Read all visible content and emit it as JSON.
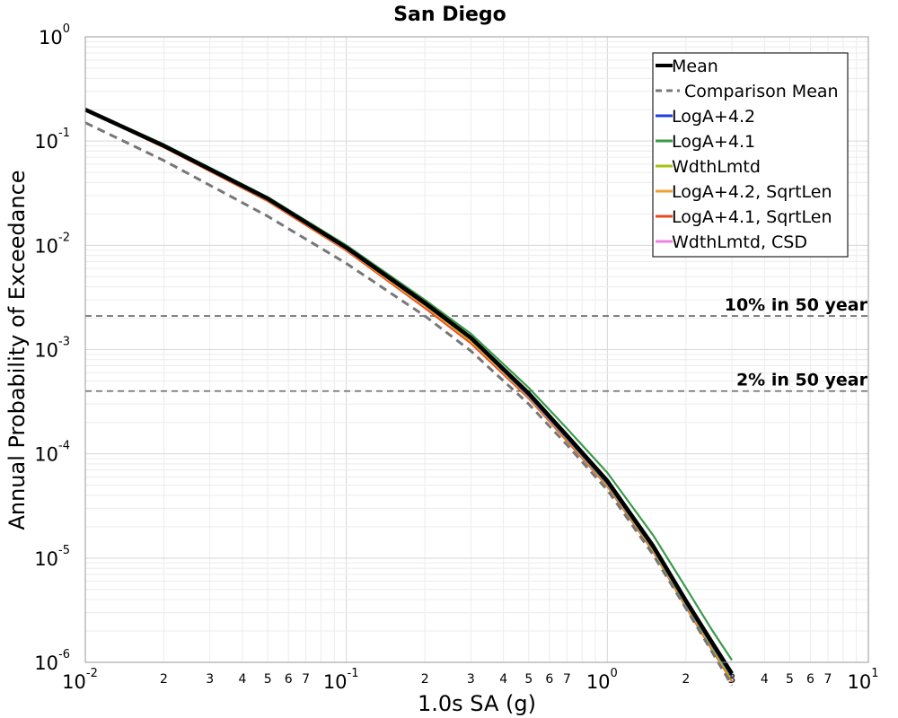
{
  "chart_data": {
    "type": "line",
    "title": "San Diego",
    "xlabel": "1.0s SA (g)",
    "ylabel": "Annual Probability of Exceedance",
    "xscale": "log",
    "yscale": "log",
    "xlim": [
      0.01,
      10
    ],
    "ylim": [
      1e-06,
      1
    ],
    "grid": true,
    "legend_position": "top-right",
    "x_major_ticks": [
      {
        "value": 0.01,
        "base": "10",
        "exp": "-2"
      },
      {
        "value": 0.1,
        "base": "10",
        "exp": "-1"
      },
      {
        "value": 1,
        "base": "10",
        "exp": "0"
      },
      {
        "value": 10,
        "base": "10",
        "exp": "1"
      }
    ],
    "x_minor_ticks": [
      {
        "value": 0.02,
        "label": "2"
      },
      {
        "value": 0.03,
        "label": "3"
      },
      {
        "value": 0.04,
        "label": "4"
      },
      {
        "value": 0.05,
        "label": "5"
      },
      {
        "value": 0.06,
        "label": "6"
      },
      {
        "value": 0.07,
        "label": "7"
      },
      {
        "value": 0.2,
        "label": "2"
      },
      {
        "value": 0.3,
        "label": "3"
      },
      {
        "value": 0.4,
        "label": "4"
      },
      {
        "value": 0.5,
        "label": "5"
      },
      {
        "value": 0.6,
        "label": "6"
      },
      {
        "value": 0.7,
        "label": "7"
      },
      {
        "value": 2,
        "label": "2"
      },
      {
        "value": 3,
        "label": "3"
      },
      {
        "value": 4,
        "label": "4"
      },
      {
        "value": 5,
        "label": "5"
      },
      {
        "value": 6,
        "label": "6"
      },
      {
        "value": 7,
        "label": "7"
      }
    ],
    "y_major_ticks": [
      {
        "value": 1,
        "base": "10",
        "exp": "0"
      },
      {
        "value": 0.1,
        "base": "10",
        "exp": "-1"
      },
      {
        "value": 0.01,
        "base": "10",
        "exp": "-2"
      },
      {
        "value": 0.001,
        "base": "10",
        "exp": "-3"
      },
      {
        "value": 0.0001,
        "base": "10",
        "exp": "-4"
      },
      {
        "value": 1e-05,
        "base": "10",
        "exp": "-5"
      },
      {
        "value": 1e-06,
        "base": "10",
        "exp": "-6"
      }
    ],
    "reference_lines": [
      {
        "label": "10% in 50 year",
        "y": 0.0021
      },
      {
        "label": "2% in 50 year",
        "y": 0.0004
      }
    ],
    "series": [
      {
        "name": "Mean",
        "color": "#000000",
        "style": "solid",
        "width": "thick",
        "x": [
          0.01,
          0.02,
          0.05,
          0.1,
          0.2,
          0.3,
          0.5,
          0.7,
          1.0,
          1.5,
          2.0,
          2.5,
          3.0
        ],
        "y": [
          0.2,
          0.09,
          0.028,
          0.0095,
          0.0028,
          0.0013,
          0.00038,
          0.00015,
          5.5e-05,
          1.3e-05,
          3.9e-06,
          1.6e-06,
          7.8e-07
        ]
      },
      {
        "name": "Comparison Mean",
        "color": "#777777",
        "style": "dashed",
        "width": "medium",
        "x": [
          0.01,
          0.02,
          0.05,
          0.1,
          0.2,
          0.3,
          0.5,
          0.7,
          1.0,
          1.5,
          2.0,
          2.5,
          3.0
        ],
        "y": [
          0.15,
          0.065,
          0.019,
          0.0067,
          0.0021,
          0.00097,
          0.0003,
          0.000122,
          4.5e-05,
          1.07e-05,
          3.3e-06,
          1.3e-06,
          6e-07
        ]
      },
      {
        "name": "LogA+4.2",
        "color": "#1f3fe0",
        "style": "solid",
        "width": "thin",
        "x": [
          0.01,
          0.02,
          0.05,
          0.1,
          0.2,
          0.3,
          0.5,
          0.7,
          1.0,
          1.5,
          2.0,
          2.5,
          3.0
        ],
        "y": [
          0.2,
          0.09,
          0.028,
          0.0094,
          0.0027,
          0.00126,
          0.00036,
          0.000142,
          5.2e-05,
          1.23e-05,
          3.7e-06,
          1.5e-06,
          7.3e-07
        ]
      },
      {
        "name": "LogA+4.1",
        "color": "#3a9a4a",
        "style": "solid",
        "width": "thin",
        "x": [
          0.01,
          0.02,
          0.05,
          0.1,
          0.2,
          0.3,
          0.5,
          0.7,
          1.0,
          1.5,
          2.0,
          2.5,
          3.0
        ],
        "y": [
          0.205,
          0.093,
          0.029,
          0.01,
          0.003,
          0.00142,
          0.00043,
          0.000175,
          6.6e-05,
          1.65e-05,
          5.2e-06,
          2.1e-06,
          1.05e-06
        ]
      },
      {
        "name": "WdthLmtd",
        "color": "#a8c010",
        "style": "solid",
        "width": "thin",
        "x": [
          0.01,
          0.02,
          0.05,
          0.1,
          0.2,
          0.3,
          0.5,
          0.7,
          1.0,
          1.5,
          2.0,
          2.5,
          3.0
        ],
        "y": [
          0.2,
          0.089,
          0.0275,
          0.0093,
          0.0027,
          0.00124,
          0.00036,
          0.00014,
          5.1e-05,
          1.2e-05,
          3.6e-06,
          1.45e-06,
          7e-07
        ]
      },
      {
        "name": "LogA+4.2, SqrtLen",
        "color": "#f0a030",
        "style": "solid",
        "width": "thin",
        "x": [
          0.01,
          0.02,
          0.05,
          0.1,
          0.2,
          0.3,
          0.5,
          0.7,
          1.0,
          1.5,
          2.0,
          2.5,
          3.0
        ],
        "y": [
          0.198,
          0.088,
          0.027,
          0.0091,
          0.0026,
          0.0012,
          0.00035,
          0.000137,
          5e-05,
          1.18e-05,
          3.5e-06,
          1.4e-06,
          6.8e-07
        ]
      },
      {
        "name": "LogA+4.1, SqrtLen",
        "color": "#e84a20",
        "style": "solid",
        "width": "thin",
        "x": [
          0.01,
          0.02,
          0.05,
          0.1,
          0.2,
          0.3,
          0.5,
          0.7,
          1.0,
          1.5,
          2.0,
          2.5,
          3.0
        ],
        "y": [
          0.198,
          0.087,
          0.0265,
          0.0089,
          0.0025,
          0.00115,
          0.00034,
          0.000133,
          4.9e-05,
          1.15e-05,
          3.4e-06,
          1.36e-06,
          6.6e-07
        ]
      },
      {
        "name": "WdthLmtd, CSD",
        "color": "#f080e0",
        "style": "solid",
        "width": "thin",
        "x": [
          0.01,
          0.02,
          0.05,
          0.1,
          0.2,
          0.3,
          0.5,
          0.7,
          1.0,
          1.5,
          2.0,
          2.5,
          3.0
        ],
        "y": [
          0.199,
          0.088,
          0.027,
          0.0092,
          0.00265,
          0.00122,
          0.00036,
          0.000139,
          5.1e-05,
          1.2e-05,
          3.6e-06,
          1.43e-06,
          6.9e-07
        ]
      }
    ]
  }
}
